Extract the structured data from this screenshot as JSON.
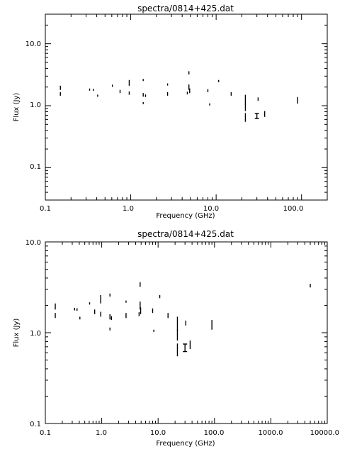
{
  "chart_data": [
    {
      "type": "scatter",
      "title": "spectra/0814+425.dat",
      "xlabel": "Frequency (GHz)",
      "ylabel": "Flux (Jy)",
      "xscale": "log",
      "yscale": "log",
      "xlim": [
        0.1,
        200
      ],
      "ylim": [
        0.03,
        30
      ],
      "x_ticks": [
        "0.1",
        "1.0",
        "10.0",
        "100.0"
      ],
      "y_ticks": [
        "0.1",
        "1.0",
        "10.0"
      ],
      "grid": false,
      "points": [
        {
          "x": 0.15,
          "y": 1.95,
          "lo": 1.8,
          "hi": 2.1
        },
        {
          "x": 0.15,
          "y": 1.55,
          "lo": 1.45,
          "hi": 1.65
        },
        {
          "x": 0.33,
          "y": 1.82,
          "lo": 1.76,
          "hi": 1.88
        },
        {
          "x": 0.365,
          "y": 1.8,
          "lo": 1.74,
          "hi": 1.86
        },
        {
          "x": 0.41,
          "y": 1.45,
          "lo": 1.4,
          "hi": 1.5
        },
        {
          "x": 0.61,
          "y": 2.1,
          "lo": 2.04,
          "hi": 2.16
        },
        {
          "x": 0.75,
          "y": 1.7,
          "lo": 1.6,
          "hi": 1.8
        },
        {
          "x": 0.96,
          "y": 2.35,
          "lo": 2.1,
          "hi": 2.6
        },
        {
          "x": 0.96,
          "y": 1.6,
          "lo": 1.5,
          "hi": 1.7
        },
        {
          "x": 1.4,
          "y": 2.6,
          "lo": 2.5,
          "hi": 2.7
        },
        {
          "x": 1.4,
          "y": 1.5,
          "lo": 1.4,
          "hi": 1.6
        },
        {
          "x": 1.4,
          "y": 1.1,
          "lo": 1.06,
          "hi": 1.14
        },
        {
          "x": 1.49,
          "y": 1.45,
          "lo": 1.38,
          "hi": 1.52
        },
        {
          "x": 2.7,
          "y": 2.2,
          "lo": 2.14,
          "hi": 2.26
        },
        {
          "x": 2.7,
          "y": 1.55,
          "lo": 1.45,
          "hi": 1.65
        },
        {
          "x": 4.8,
          "y": 3.4,
          "lo": 3.2,
          "hi": 3.6
        },
        {
          "x": 4.8,
          "y": 2.0,
          "lo": 1.8,
          "hi": 2.2
        },
        {
          "x": 4.9,
          "y": 1.75,
          "lo": 1.6,
          "hi": 1.9
        },
        {
          "x": 4.6,
          "y": 1.6,
          "lo": 1.52,
          "hi": 1.68
        },
        {
          "x": 8.0,
          "y": 1.75,
          "lo": 1.65,
          "hi": 1.85
        },
        {
          "x": 8.4,
          "y": 1.05,
          "lo": 1.02,
          "hi": 1.08
        },
        {
          "x": 10.7,
          "y": 2.5,
          "lo": 2.4,
          "hi": 2.6
        },
        {
          "x": 15.0,
          "y": 1.55,
          "lo": 1.45,
          "hi": 1.65
        },
        {
          "x": 22.0,
          "y": 1.3,
          "lo": 1.05,
          "hi": 1.5
        },
        {
          "x": 22.0,
          "y": 0.95,
          "lo": 0.82,
          "hi": 1.08
        },
        {
          "x": 22.0,
          "y": 0.65,
          "lo": 0.55,
          "hi": 0.76
        },
        {
          "x": 30.0,
          "y": 0.68,
          "lo": 0.62,
          "hi": 0.75,
          "capped": true
        },
        {
          "x": 31.0,
          "y": 1.28,
          "lo": 1.2,
          "hi": 1.36
        },
        {
          "x": 37.0,
          "y": 0.74,
          "lo": 0.66,
          "hi": 0.82
        },
        {
          "x": 90.0,
          "y": 1.22,
          "lo": 1.08,
          "hi": 1.38
        }
      ]
    },
    {
      "type": "scatter",
      "title": "spectra/0814+425.dat",
      "xlabel": "Frequency (GHz)",
      "ylabel": "Flux (Jy)",
      "xscale": "log",
      "yscale": "log",
      "xlim": [
        0.1,
        10000
      ],
      "ylim": [
        0.1,
        10
      ],
      "x_ticks": [
        "0.1",
        "1.0",
        "10.0",
        "100.0",
        "1000.0",
        "10000.0"
      ],
      "y_ticks": [
        "0.1",
        "1.0",
        "10.0"
      ],
      "grid": false,
      "points": [
        {
          "x": 0.15,
          "y": 1.95,
          "lo": 1.8,
          "hi": 2.1
        },
        {
          "x": 0.15,
          "y": 1.55,
          "lo": 1.45,
          "hi": 1.65
        },
        {
          "x": 0.33,
          "y": 1.82,
          "lo": 1.76,
          "hi": 1.88
        },
        {
          "x": 0.365,
          "y": 1.8,
          "lo": 1.74,
          "hi": 1.86
        },
        {
          "x": 0.41,
          "y": 1.45,
          "lo": 1.4,
          "hi": 1.5
        },
        {
          "x": 0.61,
          "y": 2.1,
          "lo": 2.04,
          "hi": 2.16
        },
        {
          "x": 0.75,
          "y": 1.7,
          "lo": 1.6,
          "hi": 1.8
        },
        {
          "x": 0.96,
          "y": 2.35,
          "lo": 2.1,
          "hi": 2.6
        },
        {
          "x": 0.96,
          "y": 1.6,
          "lo": 1.5,
          "hi": 1.7
        },
        {
          "x": 1.4,
          "y": 2.6,
          "lo": 2.5,
          "hi": 2.7
        },
        {
          "x": 1.4,
          "y": 1.5,
          "lo": 1.4,
          "hi": 1.6
        },
        {
          "x": 1.4,
          "y": 1.1,
          "lo": 1.06,
          "hi": 1.14
        },
        {
          "x": 1.49,
          "y": 1.45,
          "lo": 1.38,
          "hi": 1.52
        },
        {
          "x": 2.7,
          "y": 2.2,
          "lo": 2.14,
          "hi": 2.26
        },
        {
          "x": 2.7,
          "y": 1.55,
          "lo": 1.45,
          "hi": 1.65
        },
        {
          "x": 4.8,
          "y": 3.4,
          "lo": 3.2,
          "hi": 3.6
        },
        {
          "x": 4.8,
          "y": 2.0,
          "lo": 1.8,
          "hi": 2.2
        },
        {
          "x": 4.9,
          "y": 1.75,
          "lo": 1.6,
          "hi": 1.9
        },
        {
          "x": 4.6,
          "y": 1.6,
          "lo": 1.52,
          "hi": 1.68
        },
        {
          "x": 8.0,
          "y": 1.75,
          "lo": 1.65,
          "hi": 1.85
        },
        {
          "x": 8.4,
          "y": 1.05,
          "lo": 1.02,
          "hi": 1.08
        },
        {
          "x": 10.7,
          "y": 2.5,
          "lo": 2.4,
          "hi": 2.6
        },
        {
          "x": 15.0,
          "y": 1.55,
          "lo": 1.45,
          "hi": 1.65
        },
        {
          "x": 22.0,
          "y": 1.3,
          "lo": 1.05,
          "hi": 1.5
        },
        {
          "x": 22.0,
          "y": 0.95,
          "lo": 0.82,
          "hi": 1.08
        },
        {
          "x": 22.0,
          "y": 0.65,
          "lo": 0.55,
          "hi": 0.76
        },
        {
          "x": 30.0,
          "y": 0.68,
          "lo": 0.62,
          "hi": 0.75,
          "capped": true
        },
        {
          "x": 31.0,
          "y": 1.28,
          "lo": 1.2,
          "hi": 1.36
        },
        {
          "x": 37.0,
          "y": 0.74,
          "lo": 0.66,
          "hi": 0.82
        },
        {
          "x": 90.0,
          "y": 1.22,
          "lo": 1.08,
          "hi": 1.38
        },
        {
          "x": 5000.0,
          "y": 3.3,
          "lo": 3.15,
          "hi": 3.45
        }
      ]
    }
  ]
}
